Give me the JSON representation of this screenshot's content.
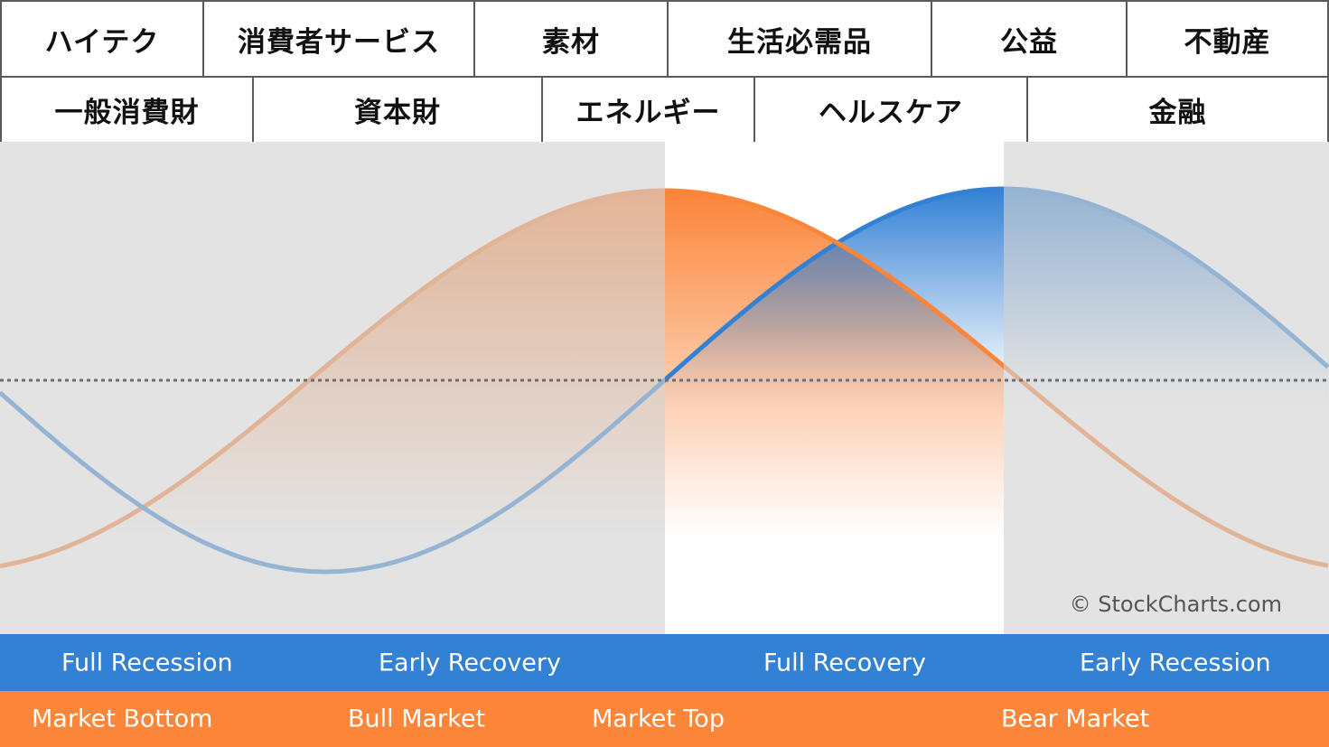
{
  "sectors_row1": [
    {
      "label": "ハイテク"
    },
    {
      "label": "消費者サービス"
    },
    {
      "label": "素材"
    },
    {
      "label": "生活必需品"
    },
    {
      "label": "公益"
    },
    {
      "label": "不動産"
    }
  ],
  "sectors_row2": [
    {
      "label": "一般消費財"
    },
    {
      "label": "資本財"
    },
    {
      "label": "エネルギー"
    },
    {
      "label": "ヘルスケア"
    },
    {
      "label": "金融"
    }
  ],
  "economic_cycle": {
    "full_recession": "Full Recession",
    "early_recovery": "Early Recovery",
    "full_recovery": "Full Recovery",
    "early_recession": "Early Recession"
  },
  "market_cycle": {
    "market_bottom": "Market Bottom",
    "bull_market": "Bull Market",
    "market_top": "Market Top",
    "bear_market": "Bear Market"
  },
  "credit": "© StockCharts.com",
  "colors": {
    "economy_curve": "#3381d4",
    "market_curve": "#fb8539",
    "shade": "#d4d4d4"
  }
}
